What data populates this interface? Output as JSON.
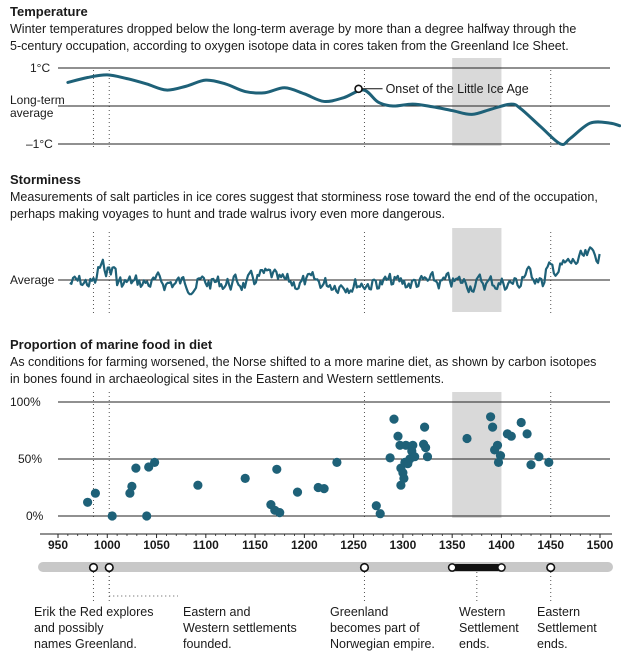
{
  "chart_data": [
    {
      "type": "line",
      "title": "Temperature",
      "subtitle_lines": [
        "Winter temperatures dropped below the long-term average by more than a degree halfway through the",
        "5-century occupation, according to oxygen isotope data in cores taken from the Greenland Ice Sheet."
      ],
      "y_tick_labels": {
        "top": "1°C",
        "mid": [
          "Long-term",
          "average"
        ],
        "bottom": "–1°C"
      },
      "ylim": [
        -1.0,
        1.0
      ],
      "x": [
        960,
        980,
        1000,
        1020,
        1040,
        1060,
        1080,
        1100,
        1120,
        1140,
        1160,
        1180,
        1200,
        1220,
        1240,
        1260,
        1275,
        1290,
        1310,
        1330,
        1350,
        1370,
        1390,
        1410,
        1420,
        1440,
        1460,
        1470,
        1490,
        1510,
        1520
      ],
      "y": [
        0.62,
        0.75,
        0.82,
        0.72,
        0.58,
        0.42,
        0.52,
        0.68,
        0.58,
        0.38,
        0.35,
        0.48,
        0.32,
        0.12,
        0.22,
        0.42,
        0.1,
        0.0,
        0.05,
        -0.02,
        -0.12,
        -0.22,
        -0.08,
        0.05,
        -0.08,
        -0.55,
        -1.0,
        -0.85,
        -0.45,
        -0.45,
        -0.52
      ],
      "annotation": {
        "label": "Onset of the Little Ice Age",
        "x": 1255,
        "y": 0.4
      }
    },
    {
      "type": "line",
      "title": "Storminess",
      "subtitle_lines": [
        "Measurements of salt particles in ice cores suggest that storminess rose toward the end of the occupation,",
        "perhaps making voyages to hunt and trade walrus ivory even more dangerous."
      ],
      "y_tick_labels": {
        "mid": "Average"
      },
      "ylim": [
        -1.0,
        1.0
      ]
    },
    {
      "type": "scatter",
      "title": "Proportion of marine food in diet",
      "subtitle_lines": [
        "As conditions for farming worsened, the Norse shifted to a more marine diet, as shown by carbon isotopes",
        "in bones found in archaeological sites in the Eastern and Western settlements."
      ],
      "y_tick_labels": [
        "100%",
        "50%",
        "0%"
      ],
      "ylim": [
        0,
        100
      ],
      "points": [
        [
          980,
          12
        ],
        [
          988,
          20
        ],
        [
          1005,
          0
        ],
        [
          1023,
          20
        ],
        [
          1025,
          26
        ],
        [
          1029,
          42
        ],
        [
          1040,
          0
        ],
        [
          1042,
          43
        ],
        [
          1048,
          47
        ],
        [
          1092,
          27
        ],
        [
          1140,
          33
        ],
        [
          1166,
          10
        ],
        [
          1170,
          5
        ],
        [
          1172,
          41
        ],
        [
          1175,
          3
        ],
        [
          1193,
          21
        ],
        [
          1214,
          25
        ],
        [
          1220,
          24
        ],
        [
          1233,
          47
        ],
        [
          1273,
          9
        ],
        [
          1277,
          2
        ],
        [
          1287,
          51
        ],
        [
          1291,
          85
        ],
        [
          1295,
          70
        ],
        [
          1297,
          62
        ],
        [
          1298,
          42
        ],
        [
          1300,
          38
        ],
        [
          1298,
          27
        ],
        [
          1301,
          33
        ],
        [
          1302,
          47
        ],
        [
          1303,
          62
        ],
        [
          1305,
          46
        ],
        [
          1307,
          50
        ],
        [
          1309,
          57
        ],
        [
          1310,
          62
        ],
        [
          1312,
          52
        ],
        [
          1321,
          63
        ],
        [
          1322,
          78
        ],
        [
          1323,
          60
        ],
        [
          1325,
          52
        ],
        [
          1365,
          68
        ],
        [
          1389,
          87
        ],
        [
          1391,
          78
        ],
        [
          1393,
          58
        ],
        [
          1396,
          62
        ],
        [
          1397,
          47
        ],
        [
          1399,
          53
        ],
        [
          1406,
          72
        ],
        [
          1410,
          70
        ],
        [
          1420,
          82
        ],
        [
          1426,
          72
        ],
        [
          1430,
          45
        ],
        [
          1438,
          52
        ],
        [
          1448,
          47
        ]
      ]
    }
  ],
  "timeline": {
    "ticks": [
      "950",
      "1000",
      "1050",
      "1100",
      "1150",
      "1200",
      "1250",
      "1300",
      "1350",
      "1400",
      "1450",
      "1500"
    ],
    "xlim": [
      950,
      1500
    ],
    "shaded_range": [
      1350,
      1400
    ],
    "events": [
      {
        "year": 986,
        "lines": [
          "Erik the Red explores",
          "and possibly",
          "names Greenland."
        ]
      },
      {
        "year": 1002,
        "lines": [
          "Eastern and",
          "Western settlements",
          "founded."
        ]
      },
      {
        "year": 1261,
        "lines": [
          "Greenland",
          "becomes part of",
          "Norwegian empire."
        ]
      },
      {
        "year": 1350,
        "end_year": 1400,
        "lines": [
          "Western",
          "Settlement",
          "ends."
        ]
      },
      {
        "year": 1450,
        "lines": [
          "Eastern",
          "Settlement",
          "ends."
        ]
      }
    ]
  },
  "colors": {
    "line": "#1e6178",
    "dot": "#1e6178",
    "shade": "#d9d9d9",
    "bar": "#c8c8c8",
    "text": "#1a1a1a"
  }
}
